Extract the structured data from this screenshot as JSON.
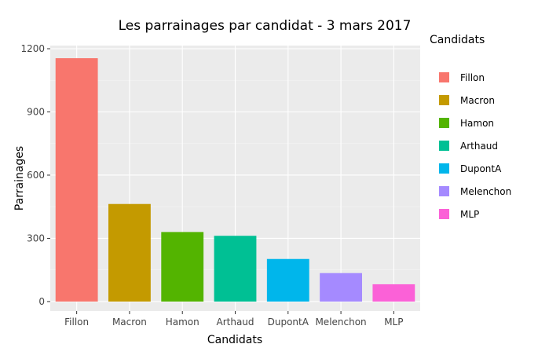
{
  "chart_data": {
    "type": "bar",
    "title": "Les parrainages par candidat - 3 mars 2017",
    "xlabel": "Candidats",
    "ylabel": "Parrainages",
    "categories": [
      "Fillon",
      "Macron",
      "Hamon",
      "Arthaud",
      "DupontA",
      "Melenchon",
      "MLP"
    ],
    "values": [
      1155,
      463,
      330,
      312,
      202,
      135,
      82
    ],
    "colors": [
      "#F8766D",
      "#C49A00",
      "#53B400",
      "#00C094",
      "#00B6EB",
      "#A58AFF",
      "#FB61D7"
    ],
    "ylim": [
      -45,
      1215
    ],
    "yticks": [
      0,
      300,
      600,
      900,
      1200
    ],
    "ytick_labels": [
      "0",
      "300",
      "600",
      "900",
      "1200"
    ],
    "grid": true,
    "legend": {
      "title": "Candidats",
      "position": "right",
      "items": [
        "Fillon",
        "Macron",
        "Hamon",
        "Arthaud",
        "DupontA",
        "Melenchon",
        "MLP"
      ]
    }
  }
}
